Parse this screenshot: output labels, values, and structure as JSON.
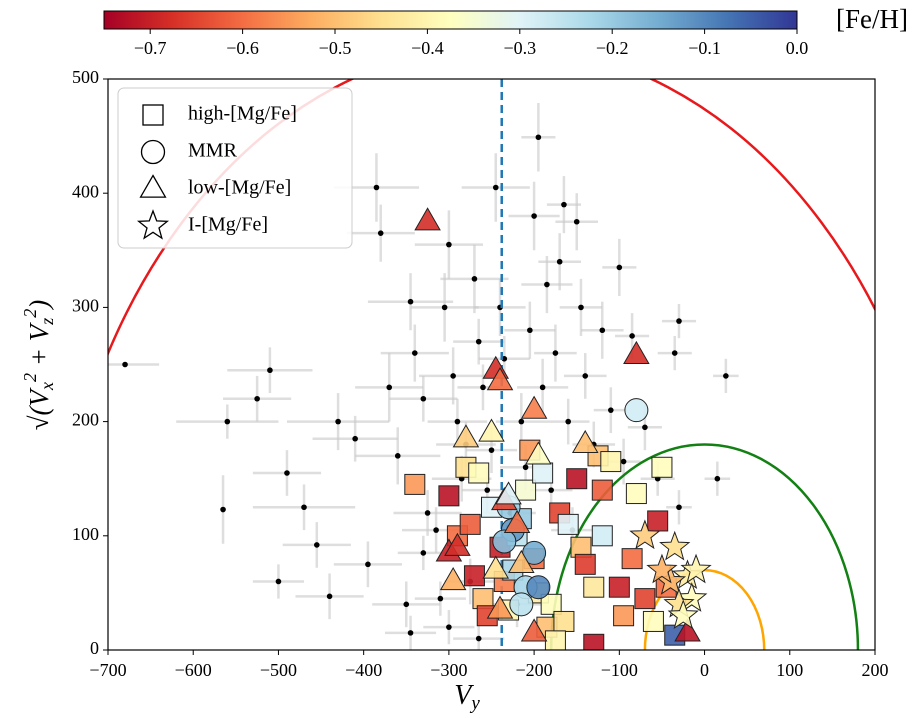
{
  "chart_data": {
    "type": "scatter",
    "xlabel": [
      "V",
      "y"
    ],
    "ylabel": [
      {
        "text": "√(V"
      },
      {
        "text": "x",
        "sub": true
      },
      {
        "text": "2",
        "sup": true
      },
      {
        "text": " + V"
      },
      {
        "text": "z",
        "sub": true
      },
      {
        "text": "2",
        "sup": true
      },
      {
        "text": ")"
      }
    ],
    "xlim": [
      -700,
      200
    ],
    "ylim": [
      0,
      500
    ],
    "xticks": [
      {
        "value": -700,
        "label": "−700"
      },
      {
        "value": -600,
        "label": "−600"
      },
      {
        "value": -500,
        "label": "−500"
      },
      {
        "value": -400,
        "label": "−400"
      },
      {
        "value": -300,
        "label": "−300"
      },
      {
        "value": -200,
        "label": "−200"
      },
      {
        "value": -100,
        "label": "−100"
      },
      0,
      100,
      200
    ],
    "yticks": [
      0,
      100,
      200,
      300,
      400,
      500
    ],
    "colorbar": {
      "label": "[Fe/H]",
      "clim": [
        -0.75,
        0.0
      ],
      "ticks": [
        {
          "value": -0.7,
          "label": "−0.7"
        },
        {
          "value": -0.6,
          "label": "−0.6"
        },
        {
          "value": -0.5,
          "label": "−0.5"
        },
        {
          "value": -0.4,
          "label": "−0.4"
        },
        {
          "value": -0.3,
          "label": "−0.3"
        },
        {
          "value": -0.2,
          "label": "−0.2"
        },
        {
          "value": -0.1,
          "label": "−0.1"
        },
        {
          "value": 0,
          "label": "0.0"
        }
      ],
      "colormap": [
        "#a50026",
        "#d73027",
        "#f46d43",
        "#fdae61",
        "#fee090",
        "#ffffbf",
        "#e0f3f8",
        "#abd9e9",
        "#74add1",
        "#4575b4",
        "#313695"
      ]
    },
    "vline": {
      "x": -238,
      "color": "#1f77b4"
    },
    "curves": [
      {
        "center": -238,
        "radius": 530,
        "color": "#e8191c"
      },
      {
        "center": 0,
        "radius": 180,
        "color": "#138013"
      },
      {
        "center": 0,
        "radius": 70,
        "color": "#ffa500"
      }
    ],
    "background": {
      "color": "#000000",
      "error_color": "#c8c8c8",
      "x": [
        -680,
        -565,
        -560,
        -525,
        -510,
        -500,
        -490,
        -470,
        -455,
        -440,
        -430,
        -410,
        -395,
        -385,
        -380,
        -370,
        -360,
        -350,
        -345,
        -340,
        -330,
        -325,
        -315,
        -305,
        -300,
        -295,
        -290,
        -285,
        -280,
        -275,
        -270,
        -265,
        -260,
        -255,
        -250,
        -245,
        -240,
        -235,
        -228,
        -220,
        -215,
        -210,
        -205,
        -200,
        -195,
        -190,
        -185,
        -180,
        -175,
        -170,
        -165,
        -160,
        -155,
        -150,
        -145,
        -140,
        -130,
        -120,
        -110,
        -100,
        -95,
        -85,
        -70,
        -55,
        -35,
        -30,
        -30,
        15,
        25,
        -310,
        -330,
        -345,
        -265,
        -300
      ],
      "y": [
        250,
        123,
        200,
        220,
        245,
        60,
        155,
        125,
        92,
        47,
        200,
        185,
        75,
        405,
        365,
        230,
        170,
        40,
        305,
        260,
        220,
        120,
        105,
        300,
        355,
        240,
        200,
        150,
        180,
        60,
        325,
        270,
        230,
        140,
        175,
        405,
        300,
        255,
        120,
        40,
        200,
        160,
        280,
        380,
        449,
        230,
        320,
        140,
        260,
        340,
        390,
        200,
        105,
        375,
        300,
        240,
        180,
        280,
        210,
        335,
        165,
        275,
        195,
        150,
        260,
        288,
        125,
        150,
        240,
        45,
        85,
        15,
        10,
        20
      ],
      "xerr": [
        40,
        0,
        60,
        40,
        50,
        30,
        40,
        60,
        40,
        40,
        60,
        50,
        40,
        50,
        40,
        40,
        50,
        40,
        50,
        40,
        40,
        40,
        40,
        40,
        40,
        40,
        35,
        35,
        35,
        30,
        40,
        30,
        30,
        30,
        30,
        40,
        30,
        30,
        30,
        30,
        30,
        30,
        30,
        30,
        20,
        30,
        30,
        25,
        25,
        25,
        20,
        25,
        25,
        25,
        25,
        25,
        25,
        25,
        20,
        20,
        20,
        20,
        20,
        20,
        20,
        20,
        15,
        15,
        15,
        30,
        30,
        30,
        30,
        30
      ],
      "yerr": [
        0,
        30,
        15,
        20,
        20,
        15,
        20,
        20,
        20,
        20,
        25,
        20,
        20,
        30,
        25,
        30,
        25,
        20,
        25,
        25,
        20,
        20,
        20,
        30,
        30,
        25,
        20,
        20,
        20,
        20,
        30,
        20,
        20,
        20,
        20,
        30,
        25,
        20,
        20,
        20,
        25,
        20,
        25,
        30,
        30,
        25,
        25,
        20,
        25,
        25,
        25,
        20,
        20,
        25,
        25,
        20,
        20,
        25,
        20,
        25,
        20,
        20,
        20,
        15,
        15,
        15,
        15,
        15,
        15,
        15,
        15,
        15,
        15,
        15
      ]
    },
    "series": [
      {
        "name": "high-[Mg/Fe]",
        "marker": "square",
        "x": [
          -340,
          -300,
          -290,
          -280,
          -275,
          -270,
          -265,
          -260,
          -255,
          -250,
          -240,
          -235,
          -230,
          -220,
          -210,
          -205,
          -200,
          -195,
          -190,
          -185,
          -180,
          -170,
          -165,
          -160,
          -150,
          -145,
          -140,
          -130,
          -125,
          -120,
          -110,
          -100,
          -95,
          -85,
          -80,
          -70,
          -60,
          -55,
          -50,
          -45,
          -35,
          -130,
          -175,
          -225,
          -215,
          -120
        ],
        "y": [
          145,
          135,
          100,
          160,
          110,
          65,
          155,
          45,
          30,
          125,
          90,
          60,
          35,
          100,
          140,
          175,
          80,
          50,
          155,
          20,
          40,
          120,
          25,
          110,
          150,
          90,
          75,
          55,
          170,
          140,
          165,
          55,
          30,
          80,
          137,
          45,
          25,
          113,
          160,
          55,
          13,
          5,
          8,
          70,
          115,
          100
        ],
        "values": [
          -0.55,
          -0.72,
          -0.6,
          -0.45,
          -0.62,
          -0.7,
          -0.38,
          -0.5,
          -0.65,
          -0.3,
          -0.7,
          -0.58,
          -0.4,
          -0.25,
          -0.35,
          -0.55,
          -0.6,
          -0.42,
          -0.3,
          -0.5,
          -0.38,
          -0.65,
          -0.45,
          -0.3,
          -0.72,
          -0.5,
          -0.66,
          -0.43,
          -0.5,
          -0.62,
          -0.4,
          -0.7,
          -0.55,
          -0.6,
          -0.38,
          -0.65,
          -0.38,
          -0.7,
          -0.38,
          -0.6,
          -0.05,
          -0.72,
          -0.4,
          -0.22,
          -0.2,
          -0.28
        ]
      },
      {
        "name": "MMR",
        "marker": "circle",
        "x": [
          -80,
          -230,
          -225,
          -200,
          -210,
          -195,
          -215,
          -235
        ],
        "y": [
          210,
          125,
          105,
          85,
          55,
          55,
          40,
          95
        ],
        "values": [
          -0.28,
          -0.2,
          -0.12,
          -0.15,
          -0.22,
          -0.1,
          -0.25,
          -0.18
        ]
      },
      {
        "name": "low-[Mg/Fe]",
        "marker": "triangle",
        "x": [
          -325,
          -80,
          -245,
          -240,
          -200,
          -250,
          -140,
          -195,
          -280,
          -235,
          -220,
          -300,
          -290,
          -295,
          -215,
          -245,
          -240,
          -200,
          -20,
          -230
        ],
        "y": [
          375,
          258,
          245,
          235,
          210,
          190,
          180,
          170,
          185,
          130,
          110,
          85,
          90,
          60,
          75,
          70,
          35,
          15,
          15,
          135
        ],
        "values": [
          -0.68,
          -0.68,
          -0.68,
          -0.6,
          -0.58,
          -0.4,
          -0.5,
          -0.37,
          -0.48,
          -0.65,
          -0.6,
          -0.7,
          -0.68,
          -0.52,
          -0.5,
          -0.45,
          -0.55,
          -0.62,
          -0.72,
          -0.3
        ]
      },
      {
        "name": "I-[Mg/Fe]",
        "marker": "star",
        "x": [
          -70,
          -35,
          -20,
          -40,
          -15,
          -30,
          -10,
          -25,
          -50
        ],
        "y": [
          100,
          90,
          65,
          60,
          45,
          40,
          70,
          30,
          70
        ],
        "values": [
          -0.48,
          -0.45,
          -0.42,
          -0.5,
          -0.38,
          -0.45,
          -0.4,
          -0.38,
          -0.52
        ]
      }
    ]
  }
}
